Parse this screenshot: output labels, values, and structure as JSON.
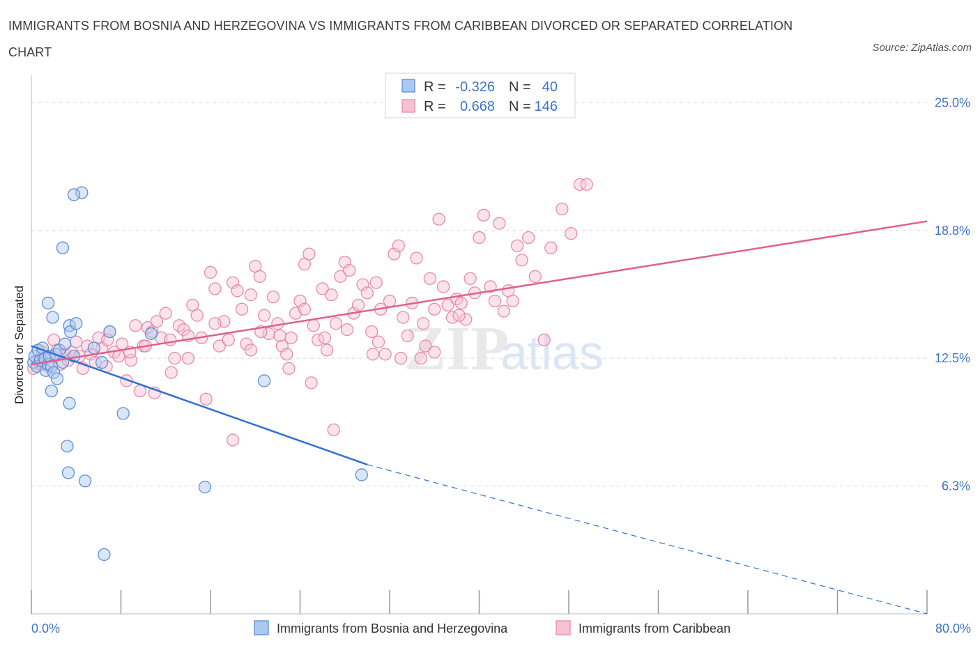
{
  "title": "IMMIGRANTS FROM BOSNIA AND HERZEGOVINA VS IMMIGRANTS FROM CARIBBEAN DIVORCED OR SEPARATED CORRELATION CHART",
  "source": "Source: ZipAtlas.com",
  "watermark": {
    "zip": "ZIP",
    "atlas": "atlas"
  },
  "legend": {
    "r_label": "R =",
    "n_label": "N =",
    "rows": [
      {
        "r": "-0.326",
        "n": "40"
      },
      {
        "r": "0.668",
        "n": "146"
      }
    ]
  },
  "colors": {
    "blue_fill": "#aac8f0",
    "blue_stroke": "#5b8fd6",
    "blue_line": "#2f6fd4",
    "pink_fill": "#f6c2d4",
    "pink_stroke": "#e88aa8",
    "pink_line": "#e0608a",
    "axis_label": "#3d74c9",
    "grid": "#d9d9d9"
  },
  "chart_data": {
    "type": "scatter",
    "title": "IMMIGRANTS FROM BOSNIA AND HERZEGOVINA VS IMMIGRANTS FROM CARIBBEAN DIVORCED OR SEPARATED CORRELATION CHART",
    "xlabel": "",
    "ylabel": "Divorced or Separated",
    "xlim": [
      0,
      80
    ],
    "ylim": [
      0,
      26
    ],
    "x_tick_labels": [
      {
        "value": 0,
        "label": "0.0%"
      },
      {
        "value": 80,
        "label": "80.0%"
      }
    ],
    "y_ticks": [
      {
        "value": 6.25,
        "label": "6.3%"
      },
      {
        "value": 12.5,
        "label": "12.5%"
      },
      {
        "value": 18.75,
        "label": "18.8%"
      },
      {
        "value": 25.0,
        "label": "25.0%"
      }
    ],
    "series": [
      {
        "name": "Immigrants from Bosnia and Herzegovina",
        "color": "blue",
        "r": -0.326,
        "n": 40,
        "trend": {
          "x0": 0,
          "y0": 13.1,
          "x1": 30,
          "y1": 7.3,
          "dash_to_x": 80,
          "dash_to_y": 0
        },
        "points": [
          [
            0.2,
            12.3
          ],
          [
            0.3,
            12.6
          ],
          [
            0.5,
            12.1
          ],
          [
            0.6,
            12.9
          ],
          [
            0.8,
            12.4
          ],
          [
            1.0,
            13.0
          ],
          [
            1.2,
            12.5
          ],
          [
            1.3,
            11.9
          ],
          [
            1.5,
            12.2
          ],
          [
            1.6,
            12.6
          ],
          [
            1.8,
            12.1
          ],
          [
            2.0,
            11.8
          ],
          [
            2.2,
            12.7
          ],
          [
            2.3,
            11.5
          ],
          [
            2.5,
            12.9
          ],
          [
            2.8,
            12.3
          ],
          [
            3.0,
            13.2
          ],
          [
            1.5,
            15.2
          ],
          [
            1.9,
            14.5
          ],
          [
            2.8,
            17.9
          ],
          [
            3.4,
            14.1
          ],
          [
            3.5,
            13.8
          ],
          [
            4.0,
            14.2
          ],
          [
            3.8,
            12.6
          ],
          [
            4.5,
            20.6
          ],
          [
            3.8,
            20.5
          ],
          [
            1.8,
            10.9
          ],
          [
            3.4,
            10.3
          ],
          [
            3.2,
            8.2
          ],
          [
            3.3,
            6.9
          ],
          [
            4.8,
            6.5
          ],
          [
            5.6,
            13.0
          ],
          [
            6.3,
            12.3
          ],
          [
            7.0,
            13.8
          ],
          [
            8.2,
            9.8
          ],
          [
            10.7,
            13.7
          ],
          [
            15.5,
            6.2
          ],
          [
            20.8,
            11.4
          ],
          [
            29.5,
            6.8
          ],
          [
            6.5,
            2.9
          ]
        ]
      },
      {
        "name": "Immigrants from Caribbean",
        "color": "pink",
        "r": 0.668,
        "n": 146,
        "trend": {
          "x0": 0,
          "y0": 12.2,
          "x1": 80,
          "y1": 19.2
        },
        "points": [
          [
            0.2,
            12.0
          ],
          [
            0.5,
            12.4
          ],
          [
            0.8,
            12.2
          ],
          [
            1.0,
            12.8
          ],
          [
            1.2,
            12.5
          ],
          [
            1.5,
            12.1
          ],
          [
            1.8,
            12.6
          ],
          [
            2.0,
            13.4
          ],
          [
            2.3,
            12.9
          ],
          [
            2.6,
            12.2
          ],
          [
            3.0,
            12.7
          ],
          [
            3.3,
            12.4
          ],
          [
            3.6,
            12.8
          ],
          [
            4.0,
            13.3
          ],
          [
            4.3,
            12.6
          ],
          [
            4.6,
            12.0
          ],
          [
            5.0,
            13.1
          ],
          [
            5.3,
            12.7
          ],
          [
            5.7,
            12.3
          ],
          [
            6.0,
            13.5
          ],
          [
            6.3,
            13.0
          ],
          [
            6.7,
            12.1
          ],
          [
            7.0,
            13.8
          ],
          [
            7.4,
            12.8
          ],
          [
            7.8,
            12.6
          ],
          [
            8.1,
            13.2
          ],
          [
            8.5,
            11.4
          ],
          [
            8.9,
            12.4
          ],
          [
            9.3,
            14.1
          ],
          [
            9.7,
            10.9
          ],
          [
            10.0,
            13.1
          ],
          [
            10.4,
            14.0
          ],
          [
            10.8,
            13.8
          ],
          [
            11.2,
            14.3
          ],
          [
            11.6,
            13.5
          ],
          [
            12.0,
            14.7
          ],
          [
            12.4,
            13.4
          ],
          [
            12.8,
            12.5
          ],
          [
            13.2,
            14.1
          ],
          [
            13.6,
            13.9
          ],
          [
            14.0,
            13.6
          ],
          [
            14.4,
            15.1
          ],
          [
            14.8,
            14.6
          ],
          [
            15.2,
            13.5
          ],
          [
            15.6,
            10.5
          ],
          [
            16.0,
            16.7
          ],
          [
            16.4,
            15.9
          ],
          [
            16.8,
            13.1
          ],
          [
            17.2,
            14.3
          ],
          [
            17.6,
            13.4
          ],
          [
            18.0,
            16.2
          ],
          [
            18.4,
            15.8
          ],
          [
            18.8,
            14.9
          ],
          [
            19.2,
            13.2
          ],
          [
            19.6,
            12.9
          ],
          [
            20.0,
            17.0
          ],
          [
            20.4,
            16.5
          ],
          [
            20.8,
            14.6
          ],
          [
            21.2,
            13.7
          ],
          [
            21.6,
            15.5
          ],
          [
            22.0,
            14.2
          ],
          [
            22.4,
            13.1
          ],
          [
            22.8,
            12.7
          ],
          [
            23.2,
            13.5
          ],
          [
            23.6,
            14.7
          ],
          [
            24.0,
            15.3
          ],
          [
            24.4,
            17.1
          ],
          [
            24.8,
            17.6
          ],
          [
            25.2,
            14.1
          ],
          [
            25.6,
            13.4
          ],
          [
            26.0,
            15.9
          ],
          [
            26.4,
            12.9
          ],
          [
            26.8,
            15.6
          ],
          [
            27.2,
            14.2
          ],
          [
            27.6,
            16.5
          ],
          [
            28.0,
            17.2
          ],
          [
            28.4,
            16.8
          ],
          [
            28.8,
            14.7
          ],
          [
            29.2,
            15.1
          ],
          [
            29.6,
            16.1
          ],
          [
            30.0,
            15.7
          ],
          [
            30.4,
            13.8
          ],
          [
            30.8,
            16.2
          ],
          [
            31.2,
            14.9
          ],
          [
            31.6,
            12.7
          ],
          [
            32.0,
            15.3
          ],
          [
            32.4,
            17.6
          ],
          [
            32.8,
            18.0
          ],
          [
            33.2,
            14.5
          ],
          [
            33.6,
            13.6
          ],
          [
            34.0,
            15.2
          ],
          [
            34.4,
            17.4
          ],
          [
            34.8,
            12.5
          ],
          [
            35.2,
            13.1
          ],
          [
            35.6,
            16.4
          ],
          [
            36.0,
            14.9
          ],
          [
            36.4,
            19.3
          ],
          [
            36.8,
            16.0
          ],
          [
            37.2,
            15.1
          ],
          [
            37.6,
            14.5
          ],
          [
            38.0,
            15.4
          ],
          [
            38.4,
            15.2
          ],
          [
            38.8,
            14.4
          ],
          [
            39.2,
            16.4
          ],
          [
            39.6,
            15.7
          ],
          [
            40.0,
            18.4
          ],
          [
            40.4,
            19.5
          ],
          [
            41.0,
            16.0
          ],
          [
            41.4,
            15.3
          ],
          [
            41.8,
            19.1
          ],
          [
            42.2,
            14.8
          ],
          [
            42.6,
            15.8
          ],
          [
            43.0,
            15.3
          ],
          [
            43.4,
            18.0
          ],
          [
            43.8,
            17.3
          ],
          [
            44.4,
            18.4
          ],
          [
            45.0,
            16.5
          ],
          [
            45.8,
            13.4
          ],
          [
            46.4,
            17.9
          ],
          [
            47.4,
            19.8
          ],
          [
            48.2,
            18.6
          ],
          [
            49.0,
            21.0
          ],
          [
            49.6,
            21.0
          ],
          [
            30.5,
            12.7
          ],
          [
            27.0,
            9.0
          ],
          [
            23.0,
            12.0
          ],
          [
            25.0,
            11.3
          ],
          [
            18.0,
            8.5
          ],
          [
            20.5,
            13.8
          ],
          [
            22.2,
            13.6
          ],
          [
            26.2,
            13.5
          ],
          [
            28.2,
            13.9
          ],
          [
            31.0,
            13.3
          ],
          [
            33.0,
            12.5
          ],
          [
            35.0,
            14.2
          ],
          [
            36.0,
            12.8
          ],
          [
            12.5,
            11.8
          ],
          [
            11.0,
            10.8
          ],
          [
            14.0,
            12.5
          ],
          [
            6.8,
            13.4
          ],
          [
            8.8,
            12.8
          ],
          [
            10.2,
            13.1
          ],
          [
            16.4,
            14.2
          ],
          [
            24.4,
            14.9
          ],
          [
            19.6,
            15.6
          ],
          [
            38.2,
            14.6
          ]
        ]
      }
    ]
  }
}
